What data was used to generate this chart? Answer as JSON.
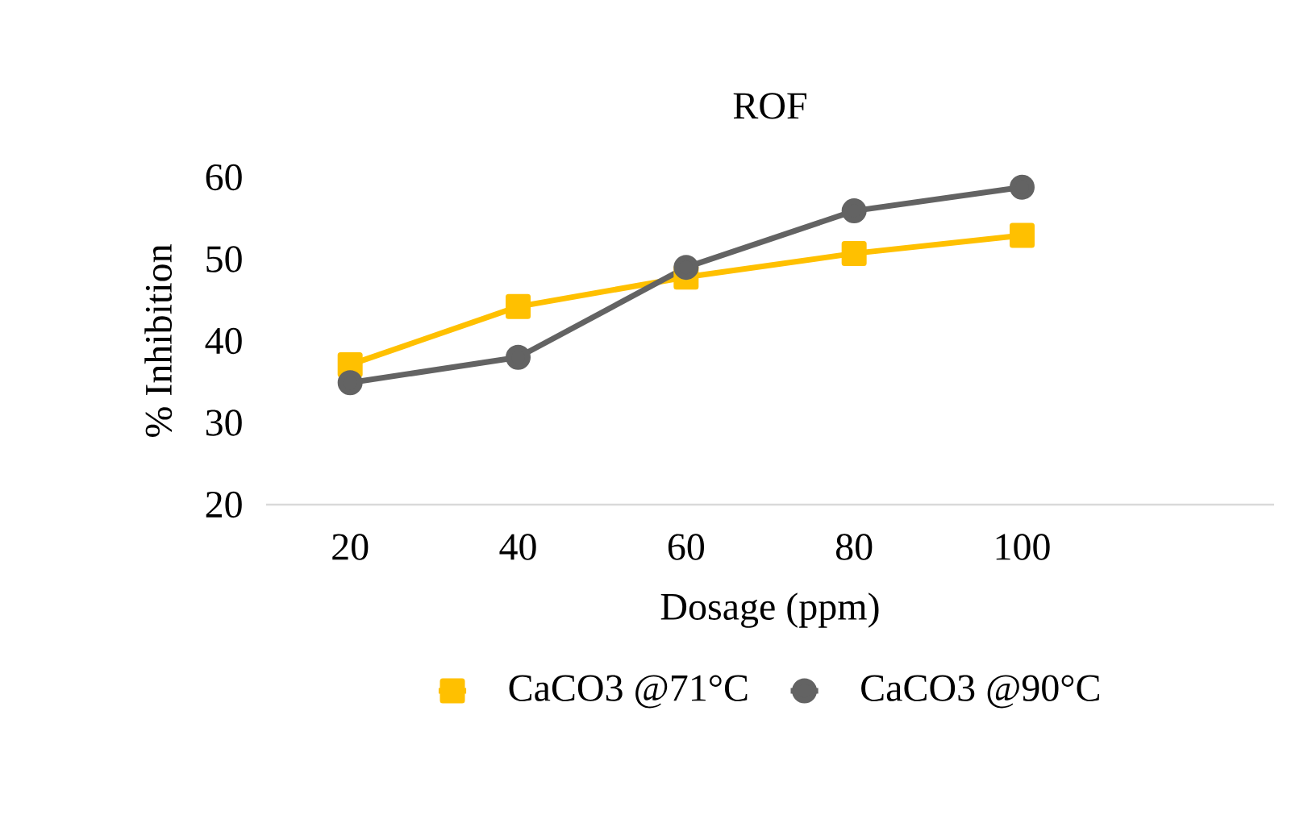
{
  "chart_data": {
    "type": "line",
    "title": "ROF",
    "xlabel": "Dosage (ppm)",
    "ylabel": "% Inhibition",
    "categories": [
      "20",
      "40",
      "60",
      "80",
      "100",
      null
    ],
    "series": [
      {
        "name": "CaCO3 @71°C",
        "color": "#ffc000",
        "marker": "square",
        "values": [
          37.1,
          44.2,
          47.8,
          50.7,
          52.9,
          null
        ]
      },
      {
        "name": "CaCO3 @90°C",
        "color": "#636363",
        "marker": "circle",
        "values": [
          34.9,
          38.0,
          49.0,
          55.9,
          58.8,
          null
        ]
      }
    ],
    "ylim": [
      20,
      60
    ],
    "yticks": [
      20,
      30,
      40,
      50,
      60
    ],
    "grid": false,
    "legend": "bottom"
  }
}
